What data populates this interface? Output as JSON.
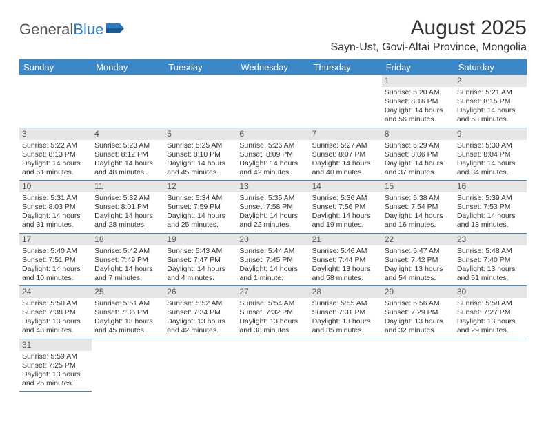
{
  "logo": {
    "text1": "General",
    "text2": "Blue"
  },
  "title": "August 2025",
  "location": "Sayn-Ust, Govi-Altai Province, Mongolia",
  "colors": {
    "header_bg": "#3b87c8",
    "header_text": "#ffffff",
    "daynum_bg": "#e6e6e6",
    "cell_border": "#3b87c8",
    "body_text": "#333333"
  },
  "weekdays": [
    "Sunday",
    "Monday",
    "Tuesday",
    "Wednesday",
    "Thursday",
    "Friday",
    "Saturday"
  ],
  "grid": {
    "first_weekday_index": 5,
    "days_in_month": 31
  },
  "days": {
    "1": {
      "sunrise": "5:20 AM",
      "sunset": "8:16 PM",
      "daylight": "14 hours and 56 minutes."
    },
    "2": {
      "sunrise": "5:21 AM",
      "sunset": "8:15 PM",
      "daylight": "14 hours and 53 minutes."
    },
    "3": {
      "sunrise": "5:22 AM",
      "sunset": "8:13 PM",
      "daylight": "14 hours and 51 minutes."
    },
    "4": {
      "sunrise": "5:23 AM",
      "sunset": "8:12 PM",
      "daylight": "14 hours and 48 minutes."
    },
    "5": {
      "sunrise": "5:25 AM",
      "sunset": "8:10 PM",
      "daylight": "14 hours and 45 minutes."
    },
    "6": {
      "sunrise": "5:26 AM",
      "sunset": "8:09 PM",
      "daylight": "14 hours and 42 minutes."
    },
    "7": {
      "sunrise": "5:27 AM",
      "sunset": "8:07 PM",
      "daylight": "14 hours and 40 minutes."
    },
    "8": {
      "sunrise": "5:29 AM",
      "sunset": "8:06 PM",
      "daylight": "14 hours and 37 minutes."
    },
    "9": {
      "sunrise": "5:30 AM",
      "sunset": "8:04 PM",
      "daylight": "14 hours and 34 minutes."
    },
    "10": {
      "sunrise": "5:31 AM",
      "sunset": "8:03 PM",
      "daylight": "14 hours and 31 minutes."
    },
    "11": {
      "sunrise": "5:32 AM",
      "sunset": "8:01 PM",
      "daylight": "14 hours and 28 minutes."
    },
    "12": {
      "sunrise": "5:34 AM",
      "sunset": "7:59 PM",
      "daylight": "14 hours and 25 minutes."
    },
    "13": {
      "sunrise": "5:35 AM",
      "sunset": "7:58 PM",
      "daylight": "14 hours and 22 minutes."
    },
    "14": {
      "sunrise": "5:36 AM",
      "sunset": "7:56 PM",
      "daylight": "14 hours and 19 minutes."
    },
    "15": {
      "sunrise": "5:38 AM",
      "sunset": "7:54 PM",
      "daylight": "14 hours and 16 minutes."
    },
    "16": {
      "sunrise": "5:39 AM",
      "sunset": "7:53 PM",
      "daylight": "14 hours and 13 minutes."
    },
    "17": {
      "sunrise": "5:40 AM",
      "sunset": "7:51 PM",
      "daylight": "14 hours and 10 minutes."
    },
    "18": {
      "sunrise": "5:42 AM",
      "sunset": "7:49 PM",
      "daylight": "14 hours and 7 minutes."
    },
    "19": {
      "sunrise": "5:43 AM",
      "sunset": "7:47 PM",
      "daylight": "14 hours and 4 minutes."
    },
    "20": {
      "sunrise": "5:44 AM",
      "sunset": "7:45 PM",
      "daylight": "14 hours and 1 minute."
    },
    "21": {
      "sunrise": "5:46 AM",
      "sunset": "7:44 PM",
      "daylight": "13 hours and 58 minutes."
    },
    "22": {
      "sunrise": "5:47 AM",
      "sunset": "7:42 PM",
      "daylight": "13 hours and 54 minutes."
    },
    "23": {
      "sunrise": "5:48 AM",
      "sunset": "7:40 PM",
      "daylight": "13 hours and 51 minutes."
    },
    "24": {
      "sunrise": "5:50 AM",
      "sunset": "7:38 PM",
      "daylight": "13 hours and 48 minutes."
    },
    "25": {
      "sunrise": "5:51 AM",
      "sunset": "7:36 PM",
      "daylight": "13 hours and 45 minutes."
    },
    "26": {
      "sunrise": "5:52 AM",
      "sunset": "7:34 PM",
      "daylight": "13 hours and 42 minutes."
    },
    "27": {
      "sunrise": "5:54 AM",
      "sunset": "7:32 PM",
      "daylight": "13 hours and 38 minutes."
    },
    "28": {
      "sunrise": "5:55 AM",
      "sunset": "7:31 PM",
      "daylight": "13 hours and 35 minutes."
    },
    "29": {
      "sunrise": "5:56 AM",
      "sunset": "7:29 PM",
      "daylight": "13 hours and 32 minutes."
    },
    "30": {
      "sunrise": "5:58 AM",
      "sunset": "7:27 PM",
      "daylight": "13 hours and 29 minutes."
    },
    "31": {
      "sunrise": "5:59 AM",
      "sunset": "7:25 PM",
      "daylight": "13 hours and 25 minutes."
    }
  },
  "labels": {
    "sunrise": "Sunrise:",
    "sunset": "Sunset:",
    "daylight": "Daylight:"
  }
}
